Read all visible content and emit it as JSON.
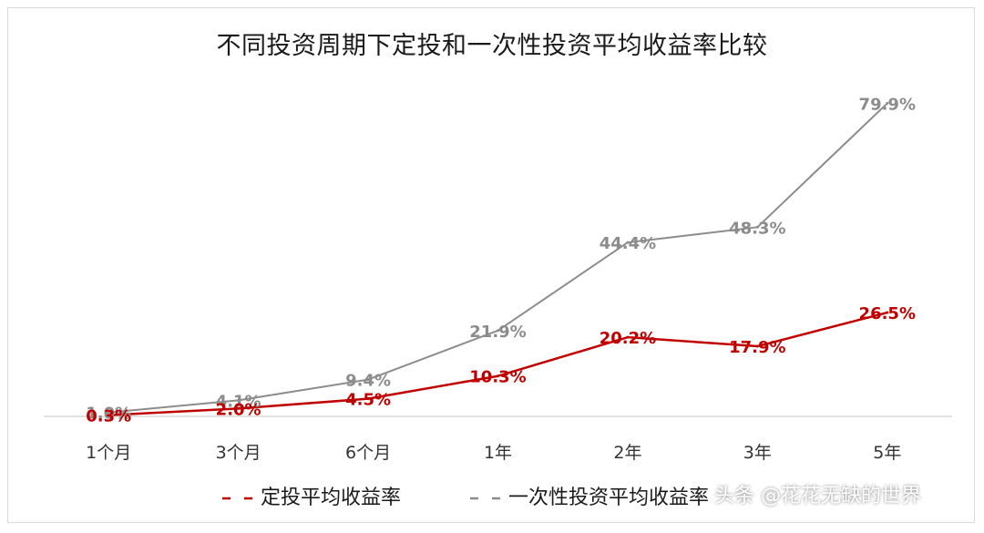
{
  "chart_data": {
    "type": "line",
    "title": "不同投资周期下定投和一次性投资平均收益率比较",
    "categories": [
      "1个月",
      "3个月",
      "6个月",
      "1年",
      "2年",
      "3年",
      "5年"
    ],
    "series": [
      {
        "name": "定投平均收益率",
        "values": [
          0.3,
          2.0,
          4.5,
          10.3,
          20.2,
          17.9,
          26.5
        ],
        "labels": [
          "0.3%",
          "2.0%",
          "4.5%",
          "10.3%",
          "20.2%",
          "17.9%",
          "26.5%"
        ],
        "color": "#c00000"
      },
      {
        "name": "一次性投资平均收益率",
        "values": [
          1.0,
          4.1,
          9.4,
          21.9,
          44.4,
          48.3,
          79.9
        ],
        "labels": [
          "1.0%",
          "4.1%",
          "9.4%",
          "21.9%",
          "44.4%",
          "48.3%",
          "79.9%"
        ],
        "color": "#8c8c8c"
      }
    ],
    "ylim": [
      0,
      80
    ],
    "grid": false,
    "legend_position": "bottom"
  },
  "watermark": "头条 @花花无缺的世界"
}
